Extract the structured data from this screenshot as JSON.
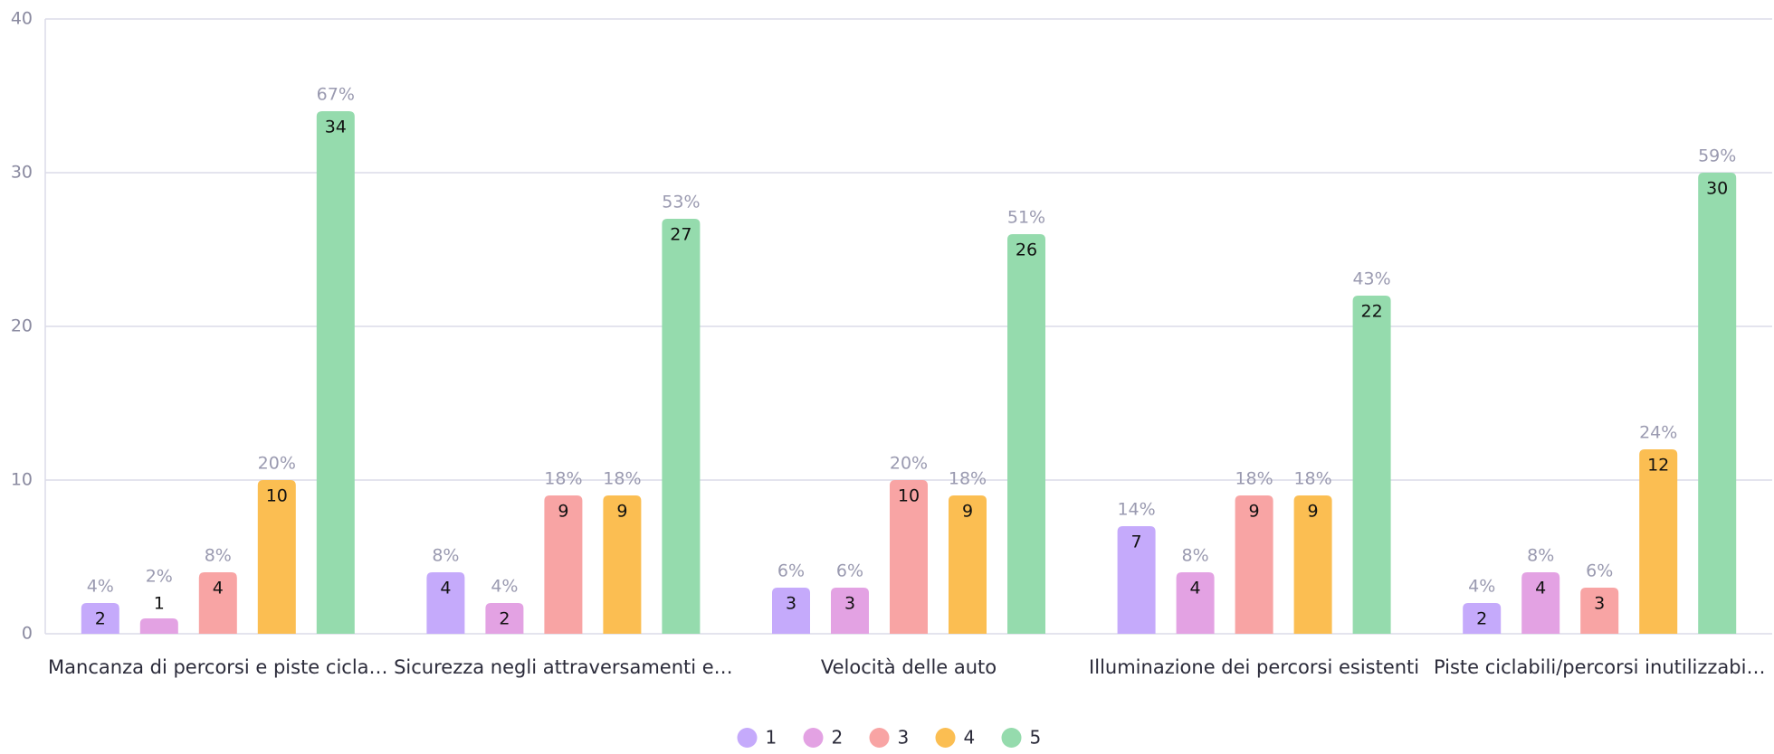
{
  "chart_data": {
    "type": "bar",
    "categories": [
      "Mancanza di percorsi e piste cicla…",
      "Sicurezza negli attraversamenti e…",
      "Velocità delle auto",
      "Illuminazione dei percorsi esistenti",
      "Piste ciclabili/percorsi inutilizzabi…"
    ],
    "series": [
      {
        "name": "1",
        "color": "#c5aafb",
        "values": [
          2,
          4,
          3,
          7,
          2
        ],
        "percent_labels": [
          "4%",
          "8%",
          "6%",
          "14%",
          "4%"
        ]
      },
      {
        "name": "2",
        "color": "#e3a2e3",
        "values": [
          1,
          2,
          3,
          4,
          4
        ],
        "percent_labels": [
          "2%",
          "4%",
          "6%",
          "8%",
          "8%"
        ]
      },
      {
        "name": "3",
        "color": "#f8a4a4",
        "values": [
          4,
          9,
          10,
          9,
          3
        ],
        "percent_labels": [
          "8%",
          "18%",
          "20%",
          "18%",
          "6%"
        ]
      },
      {
        "name": "4",
        "color": "#fbbe52",
        "values": [
          10,
          9,
          9,
          9,
          12
        ],
        "percent_labels": [
          "20%",
          "18%",
          "18%",
          "18%",
          "24%"
        ]
      },
      {
        "name": "5",
        "color": "#95dbad",
        "values": [
          34,
          27,
          26,
          22,
          30
        ],
        "percent_labels": [
          "67%",
          "53%",
          "51%",
          "43%",
          "59%"
        ]
      }
    ],
    "ylim": [
      0,
      40
    ],
    "yticks": [
      0,
      10,
      20,
      30,
      40
    ],
    "grid": true,
    "legend": "bottom"
  }
}
